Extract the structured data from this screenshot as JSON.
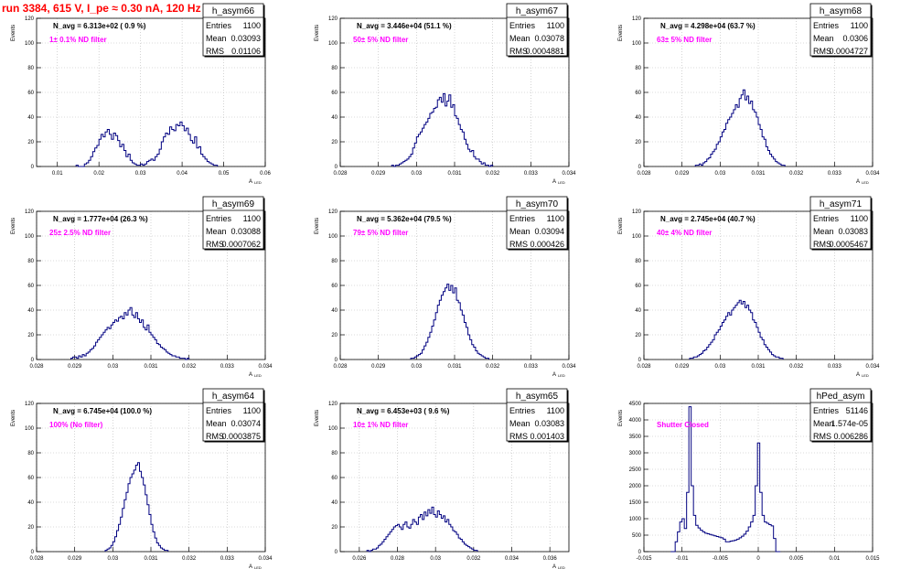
{
  "run_title": "run 3384,   615 V, I_pe ≈ 0.30 nA, 120 Hz",
  "colors": {
    "histogram": "#000080",
    "annotation": "#ff00ff",
    "title": "#ff0000",
    "axis": "#000000",
    "grid": "#b8b8b8"
  },
  "chart_data": [
    {
      "type": "histogram",
      "name": "h_asym66",
      "stats": {
        "entries": "1100",
        "mean": "0.03093",
        "rms": "0.01106"
      },
      "navg": "N_avg = 6.313e+02 ( 0.9 %)",
      "filter": "1± 0.1% ND filter",
      "ylabel": "Events",
      "xlabel": "A",
      "xlabel_sub": "LED",
      "xlim": [
        0.005,
        0.06
      ],
      "ylim": [
        0,
        120
      ],
      "grid": true,
      "xticks": [
        "0.01",
        "0.02",
        "0.03",
        "0.04",
        "0.05",
        "0.06"
      ],
      "xtick_vals": [
        0.01,
        0.02,
        0.03,
        0.04,
        0.05,
        0.06
      ],
      "yticks": [
        "0",
        "20",
        "40",
        "60",
        "80",
        "100",
        "120"
      ],
      "ytick_vals": [
        0,
        20,
        40,
        60,
        80,
        100,
        120
      ],
      "bin_start": 0.0145,
      "bin_width": 0.0005,
      "counts": [
        1,
        0,
        0,
        0,
        2,
        3,
        5,
        8,
        12,
        15,
        17,
        22,
        26,
        24,
        28,
        30,
        26,
        22,
        27,
        25,
        21,
        16,
        18,
        13,
        8,
        10,
        5,
        3,
        2,
        1,
        1,
        2,
        1,
        2,
        4,
        5,
        6,
        5,
        8,
        10,
        14,
        20,
        24,
        27,
        26,
        32,
        30,
        29,
        34,
        33,
        36,
        33,
        29,
        31,
        26,
        21,
        19,
        24,
        15,
        16,
        10,
        8,
        6,
        4,
        3,
        2,
        1,
        1
      ]
    },
    {
      "type": "histogram",
      "name": "h_asym67",
      "stats": {
        "entries": "1100",
        "mean": "0.03078",
        "rms": "0.0004881"
      },
      "navg": "N_avg = 3.446e+04 (51.1 %)",
      "filter": "50± 5% ND filter",
      "ylabel": "Events",
      "xlabel": "A",
      "xlabel_sub": "LED",
      "xlim": [
        0.028,
        0.034
      ],
      "ylim": [
        0,
        120
      ],
      "grid": true,
      "xticks": [
        "0.028",
        "0.029",
        "0.03",
        "0.031",
        "0.032",
        "0.033",
        "0.034"
      ],
      "xtick_vals": [
        0.028,
        0.029,
        0.03,
        0.031,
        0.032,
        0.033,
        0.034
      ],
      "yticks": [
        "0",
        "20",
        "40",
        "60",
        "80",
        "100",
        "120"
      ],
      "ytick_vals": [
        0,
        20,
        40,
        60,
        80,
        100,
        120
      ],
      "bin_start": 0.02935,
      "bin_width": 5e-05,
      "counts": [
        1,
        0,
        1,
        1,
        2,
        3,
        4,
        5,
        6,
        8,
        10,
        15,
        19,
        24,
        26,
        28,
        31,
        34,
        36,
        39,
        43,
        44,
        47,
        48,
        54,
        56,
        52,
        59,
        49,
        53,
        58,
        48,
        50,
        41,
        39,
        34,
        30,
        28,
        22,
        18,
        14,
        12,
        13,
        8,
        6,
        6,
        4,
        2,
        3,
        1,
        1,
        0,
        1
      ]
    },
    {
      "type": "histogram",
      "name": "h_asym68",
      "stats": {
        "entries": "1100",
        "mean": "0.0306",
        "rms": "0.0004727"
      },
      "navg": "N_avg = 4.298e+04 (63.7 %)",
      "filter": "63± 5% ND filter",
      "ylabel": "Events",
      "xlabel": "A",
      "xlabel_sub": "LED",
      "xlim": [
        0.028,
        0.034
      ],
      "ylim": [
        0,
        120
      ],
      "grid": true,
      "xticks": [
        "0.028",
        "0.029",
        "0.03",
        "0.031",
        "0.032",
        "0.033",
        "0.034"
      ],
      "xtick_vals": [
        0.028,
        0.029,
        0.03,
        0.031,
        0.032,
        0.033,
        0.034
      ],
      "yticks": [
        "0",
        "20",
        "40",
        "60",
        "80",
        "100",
        "120"
      ],
      "ytick_vals": [
        0,
        20,
        40,
        60,
        80,
        100,
        120
      ],
      "bin_start": 0.02935,
      "bin_width": 5e-05,
      "counts": [
        1,
        1,
        2,
        1,
        3,
        4,
        6,
        7,
        10,
        12,
        14,
        18,
        20,
        24,
        28,
        30,
        35,
        38,
        40,
        43,
        46,
        50,
        48,
        55,
        58,
        62,
        54,
        57,
        51,
        53,
        46,
        44,
        40,
        34,
        30,
        24,
        22,
        16,
        13,
        10,
        8,
        6,
        4,
        3,
        2,
        1,
        1
      ]
    },
    {
      "type": "histogram",
      "name": "h_asym69",
      "stats": {
        "entries": "1100",
        "mean": "0.03088",
        "rms": "0.0007062"
      },
      "navg": "N_avg = 1.777e+04 (26.3 %)",
      "filter": "25± 2.5% ND filter",
      "ylabel": "Events",
      "xlabel": "A",
      "xlabel_sub": "LED",
      "xlim": [
        0.028,
        0.034
      ],
      "ylim": [
        0,
        120
      ],
      "grid": true,
      "xticks": [
        "0.028",
        "0.029",
        "0.03",
        "0.031",
        "0.032",
        "0.033",
        "0.034"
      ],
      "xtick_vals": [
        0.028,
        0.029,
        0.03,
        0.031,
        0.032,
        0.033,
        0.034
      ],
      "yticks": [
        "0",
        "20",
        "40",
        "60",
        "80",
        "100",
        "120"
      ],
      "ytick_vals": [
        0,
        20,
        40,
        60,
        80,
        100,
        120
      ],
      "bin_start": 0.0289,
      "bin_width": 5e-05,
      "counts": [
        1,
        2,
        2,
        1,
        3,
        2,
        4,
        3,
        5,
        6,
        8,
        9,
        11,
        14,
        16,
        18,
        20,
        22,
        24,
        26,
        25,
        28,
        30,
        32,
        31,
        34,
        35,
        33,
        38,
        36,
        40,
        42,
        36,
        34,
        38,
        33,
        30,
        32,
        26,
        24,
        28,
        22,
        20,
        18,
        16,
        13,
        12,
        10,
        9,
        8,
        6,
        5,
        4,
        3,
        3,
        2,
        2,
        1,
        1,
        1,
        0,
        1
      ]
    },
    {
      "type": "histogram",
      "name": "h_asym70",
      "stats": {
        "entries": "1100",
        "mean": "0.03094",
        "rms": "0.000426"
      },
      "navg": "N_avg = 5.362e+04 (79.5 %)",
      "filter": "79± 5% ND filter",
      "ylabel": "Events",
      "xlabel": "A",
      "xlabel_sub": "LED",
      "xlim": [
        0.028,
        0.034
      ],
      "ylim": [
        0,
        120
      ],
      "grid": true,
      "xticks": [
        "0.028",
        "0.029",
        "0.03",
        "0.031",
        "0.032",
        "0.033",
        "0.034"
      ],
      "xtick_vals": [
        0.028,
        0.029,
        0.03,
        0.031,
        0.032,
        0.033,
        0.034
      ],
      "yticks": [
        "0",
        "20",
        "40",
        "60",
        "80",
        "100",
        "120"
      ],
      "ytick_vals": [
        0,
        20,
        40,
        60,
        80,
        100,
        120
      ],
      "bin_start": 0.02985,
      "bin_width": 5e-05,
      "counts": [
        1,
        1,
        2,
        3,
        4,
        5,
        8,
        11,
        14,
        18,
        22,
        27,
        32,
        38,
        44,
        48,
        52,
        55,
        58,
        61,
        56,
        60,
        54,
        58,
        48,
        46,
        40,
        36,
        30,
        26,
        20,
        16,
        12,
        10,
        7,
        5,
        4,
        3,
        2,
        1,
        1
      ]
    },
    {
      "type": "histogram",
      "name": "h_asym71",
      "stats": {
        "entries": "1100",
        "mean": "0.03083",
        "rms": "0.0005467"
      },
      "navg": "N_avg = 2.745e+04 (40.7 %)",
      "filter": "40± 4% ND filter",
      "ylabel": "Events",
      "xlabel": "A",
      "xlabel_sub": "LED",
      "xlim": [
        0.028,
        0.034
      ],
      "ylim": [
        0,
        120
      ],
      "grid": true,
      "xticks": [
        "0.028",
        "0.029",
        "0.03",
        "0.031",
        "0.032",
        "0.033",
        "0.034"
      ],
      "xtick_vals": [
        0.028,
        0.029,
        0.03,
        0.031,
        0.032,
        0.033,
        0.034
      ],
      "yticks": [
        "0",
        "20",
        "40",
        "60",
        "80",
        "100",
        "120"
      ],
      "ytick_vals": [
        0,
        20,
        40,
        60,
        80,
        100,
        120
      ],
      "bin_start": 0.0292,
      "bin_width": 5e-05,
      "counts": [
        1,
        1,
        2,
        2,
        3,
        4,
        5,
        7,
        8,
        10,
        12,
        14,
        16,
        20,
        22,
        24,
        27,
        30,
        32,
        35,
        38,
        36,
        40,
        42,
        44,
        46,
        48,
        45,
        47,
        42,
        44,
        40,
        38,
        32,
        30,
        26,
        22,
        18,
        16,
        12,
        10,
        8,
        6,
        4,
        3,
        2,
        2,
        1,
        1
      ]
    },
    {
      "type": "histogram",
      "name": "h_asym64",
      "stats": {
        "entries": "1100",
        "mean": "0.03074",
        "rms": "0.0003875"
      },
      "navg": "N_avg = 6.745e+04 (100.0 %)",
      "filter": "100% (No filter)",
      "ylabel": "Events",
      "xlabel": "A",
      "xlabel_sub": "LED",
      "xlim": [
        0.028,
        0.034
      ],
      "ylim": [
        0,
        120
      ],
      "grid": true,
      "xticks": [
        "0.028",
        "0.029",
        "0.03",
        "0.031",
        "0.032",
        "0.033",
        "0.034"
      ],
      "xtick_vals": [
        0.028,
        0.029,
        0.03,
        0.031,
        0.032,
        0.033,
        0.034
      ],
      "yticks": [
        "0",
        "20",
        "40",
        "60",
        "80",
        "100",
        "120"
      ],
      "ytick_vals": [
        0,
        20,
        40,
        60,
        80,
        100,
        120
      ],
      "bin_start": 0.0298,
      "bin_width": 5e-05,
      "counts": [
        1,
        2,
        3,
        5,
        8,
        12,
        17,
        22,
        28,
        35,
        42,
        48,
        55,
        60,
        63,
        66,
        70,
        72,
        65,
        60,
        54,
        46,
        38,
        30,
        22,
        16,
        11,
        7,
        5,
        3,
        2,
        1,
        1
      ]
    },
    {
      "type": "histogram",
      "name": "h_asym65",
      "stats": {
        "entries": "1100",
        "mean": "0.03083",
        "rms": "0.001403"
      },
      "navg": "N_avg = 6.453e+03 ( 9.6 %)",
      "filter": "10± 1% ND filter",
      "ylabel": "Events",
      "xlabel": "A",
      "xlabel_sub": "LED",
      "xlim": [
        0.025,
        0.037
      ],
      "ylim": [
        0,
        120
      ],
      "grid": true,
      "xticks": [
        "0.026",
        "0.028",
        "0.03",
        "0.032",
        "0.034",
        "0.036"
      ],
      "xtick_vals": [
        0.026,
        0.028,
        0.03,
        0.032,
        0.034,
        0.036
      ],
      "yticks": [
        "0",
        "20",
        "40",
        "60",
        "80",
        "100",
        "120"
      ],
      "ytick_vals": [
        0,
        20,
        40,
        60,
        80,
        100,
        120
      ],
      "bin_start": 0.0264,
      "bin_width": 0.0001,
      "counts": [
        1,
        0,
        1,
        2,
        2,
        3,
        5,
        6,
        8,
        10,
        12,
        14,
        16,
        18,
        20,
        21,
        22,
        20,
        18,
        22,
        24,
        20,
        19,
        22,
        26,
        24,
        22,
        28,
        30,
        26,
        32,
        29,
        34,
        31,
        36,
        30,
        28,
        33,
        30,
        27,
        29,
        24,
        26,
        22,
        20,
        17,
        16,
        14,
        11,
        10,
        8,
        6,
        5,
        4,
        3,
        2,
        1,
        1
      ]
    },
    {
      "type": "histogram",
      "name": "hPed_asym",
      "stats": {
        "entries": "51146",
        "mean": "1.574e-05",
        "rms": "0.006286"
      },
      "navg": "",
      "filter": "Shutter Closed",
      "ylabel": "Events",
      "xlabel": "",
      "xlabel_sub": "",
      "xlim": [
        -0.015,
        0.015
      ],
      "ylim": [
        0,
        4500
      ],
      "grid": true,
      "xticks": [
        "-0.015",
        "-0.01",
        "-0.005",
        "0",
        "0.005",
        "0.01",
        "0.015"
      ],
      "xtick_vals": [
        -0.015,
        -0.01,
        -0.005,
        0,
        0.005,
        0.01,
        0.015
      ],
      "yticks": [
        "0",
        "500",
        "1000",
        "1500",
        "2000",
        "2500",
        "3000",
        "3500",
        "4000",
        "4500"
      ],
      "ytick_vals": [
        0,
        500,
        1000,
        1500,
        2000,
        2500,
        3000,
        3500,
        4000,
        4500
      ],
      "bin_start": -0.0115,
      "bin_width": 0.0003,
      "counts": [
        0,
        0,
        300,
        600,
        900,
        1000,
        700,
        1800,
        4400,
        2000,
        1100,
        800,
        720,
        650,
        600,
        560,
        540,
        520,
        500,
        480,
        460,
        440,
        420,
        380,
        300,
        300,
        320,
        330,
        350,
        380,
        420,
        470,
        530,
        620,
        750,
        900,
        1100,
        2000,
        3300,
        1800,
        1100,
        900,
        860,
        820,
        780,
        400,
        0,
        0
      ]
    }
  ]
}
